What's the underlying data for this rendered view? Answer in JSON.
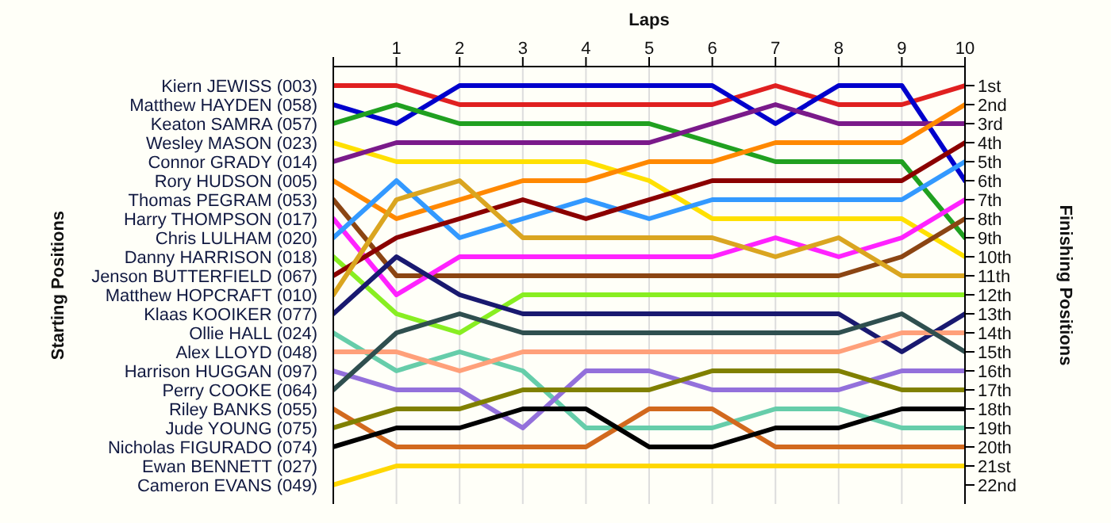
{
  "chart_data": {
    "type": "line",
    "xlabel": "Laps",
    "y2label": "Finishing Positions",
    "x": [
      0,
      1,
      2,
      3,
      4,
      5,
      6,
      7,
      8,
      9,
      10
    ],
    "xlim": [
      0,
      10
    ],
    "xticks": [
      {
        "value": 0,
        "label": null
      },
      1,
      2,
      3,
      4,
      5,
      6,
      7,
      8,
      9,
      10
    ],
    "y2lim": [
      23,
      0
    ],
    "y2ticks": [
      {
        "value": 1,
        "label": "1st"
      },
      {
        "value": 2,
        "label": "2nd"
      },
      {
        "value": 3,
        "label": "3rd"
      },
      {
        "value": 4,
        "label": "4th"
      },
      {
        "value": 5,
        "label": "5th"
      },
      {
        "value": 6,
        "label": "6th"
      },
      {
        "value": 7,
        "label": "7th"
      },
      {
        "value": 8,
        "label": "8th"
      },
      {
        "value": 9,
        "label": "9th"
      },
      {
        "value": 10,
        "label": "10th"
      },
      {
        "value": 11,
        "label": "11th"
      },
      {
        "value": 12,
        "label": "12th"
      },
      {
        "value": 13,
        "label": "13th"
      },
      {
        "value": 14,
        "label": "14th"
      },
      {
        "value": 15,
        "label": "15th"
      },
      {
        "value": 16,
        "label": "16th"
      },
      {
        "value": 17,
        "label": "17th"
      },
      {
        "value": 18,
        "label": "18th"
      },
      {
        "value": 19,
        "label": "19th"
      },
      {
        "value": 20,
        "label": "20th"
      },
      {
        "value": 21,
        "label": "21st"
      },
      {
        "value": 22,
        "label": "22nd"
      }
    ],
    "grid": true,
    "marker": "none",
    "line_style": "solid",
    "annotations": [
      "Ewan BENNETT (027)",
      "Starting Positions"
    ],
    "series": [
      {
        "name": "Kiern JEWISS (003)",
        "axis": "y2",
        "color": "#e02020",
        "values": [
          1,
          1,
          2,
          2,
          2,
          2,
          2,
          1,
          2,
          2,
          1
        ]
      },
      {
        "name": "Matthew HAYDEN (058)",
        "axis": "y2",
        "color": "#0000cc",
        "values": [
          2,
          3,
          1,
          1,
          1,
          1,
          1,
          3,
          1,
          1,
          6
        ]
      },
      {
        "name": "Keaton SAMRA (057)",
        "axis": "y2",
        "color": "#20a020",
        "values": [
          3,
          2,
          3,
          3,
          3,
          3,
          4,
          5,
          5,
          5,
          9
        ]
      },
      {
        "name": "Wesley MASON (023)",
        "axis": "y2",
        "color": "#ffe000",
        "values": [
          4,
          5,
          5,
          5,
          5,
          6,
          8,
          8,
          8,
          8,
          10
        ]
      },
      {
        "name": "Connor GRADY (014)",
        "axis": "y2",
        "color": "#7a1a8a",
        "values": [
          5,
          4,
          4,
          4,
          4,
          4,
          3,
          2,
          3,
          3,
          3
        ]
      },
      {
        "name": "Rory HUDSON (005)",
        "axis": "y2",
        "color": "#ff8800",
        "values": [
          6,
          8,
          7,
          6,
          6,
          5,
          5,
          4,
          4,
          4,
          2
        ]
      },
      {
        "name": "Thomas PEGRAM (053)",
        "axis": "y2",
        "color": "#8b4513",
        "values": [
          7,
          11,
          11,
          11,
          11,
          11,
          11,
          11,
          11,
          10,
          8
        ]
      },
      {
        "name": "Harry THOMPSON (017)",
        "axis": "y2",
        "color": "#ff22ff",
        "values": [
          8,
          12,
          10,
          10,
          10,
          10,
          10,
          9,
          10,
          9,
          7
        ]
      },
      {
        "name": "Chris LULHAM (020)",
        "axis": "y2",
        "color": "#3399ff",
        "values": [
          9,
          6,
          9,
          8,
          7,
          8,
          7,
          7,
          7,
          7,
          5
        ]
      },
      {
        "name": "Danny HARRISON (018)",
        "axis": "y2",
        "color": "#88ee22",
        "values": [
          10,
          13,
          14,
          12,
          12,
          12,
          12,
          12,
          12,
          12,
          12
        ]
      },
      {
        "name": "Jenson BUTTERFIELD (067)",
        "axis": "y2",
        "color": "#8b0000",
        "values": [
          11,
          9,
          8,
          7,
          8,
          7,
          6,
          6,
          6,
          6,
          4
        ]
      },
      {
        "name": "Matthew HOPCRAFT (010)",
        "axis": "y2",
        "color": "#daa520",
        "values": [
          12,
          7,
          6,
          9,
          9,
          9,
          9,
          10,
          9,
          11,
          11
        ]
      },
      {
        "name": "Klaas KOOIKER (077)",
        "axis": "y2",
        "color": "#191970",
        "values": [
          13,
          10,
          12,
          13,
          13,
          13,
          13,
          13,
          13,
          15,
          13
        ]
      },
      {
        "name": "Ollie HALL (024)",
        "axis": "y2",
        "color": "#66cdaa",
        "values": [
          14,
          16,
          15,
          16,
          19,
          19,
          19,
          18,
          18,
          19,
          19
        ]
      },
      {
        "name": "Alex LLOYD (048)",
        "axis": "y2",
        "color": "#ffa07a",
        "values": [
          15,
          15,
          16,
          15,
          15,
          15,
          15,
          15,
          15,
          14,
          14
        ]
      },
      {
        "name": "Harrison HUGGAN (097)",
        "axis": "y2",
        "color": "#9370db",
        "values": [
          16,
          17,
          17,
          19,
          16,
          16,
          17,
          17,
          17,
          16,
          16
        ]
      },
      {
        "name": "Perry COOKE (064)",
        "axis": "y2",
        "color": "#2f4f4f",
        "values": [
          17,
          14,
          13,
          14,
          14,
          14,
          14,
          14,
          14,
          13,
          15
        ]
      },
      {
        "name": "Riley BANKS (055)",
        "axis": "y2",
        "color": "#d2691e",
        "values": [
          18,
          20,
          20,
          20,
          20,
          18,
          18,
          20,
          20,
          20,
          20
        ]
      },
      {
        "name": "Jude YOUNG (075)",
        "axis": "y2",
        "color": "#808000",
        "values": [
          19,
          18,
          18,
          17,
          17,
          17,
          16,
          16,
          16,
          17,
          17
        ]
      },
      {
        "name": "Nicholas FIGURADO (074)",
        "axis": "y2",
        "color": "#000000",
        "values": [
          20,
          19,
          19,
          18,
          18,
          20,
          20,
          19,
          19,
          18,
          18
        ]
      },
      {
        "name": "Cameron EVANS (049)",
        "axis": "y2",
        "color": "#ffd700",
        "values": [
          22,
          21,
          21,
          21,
          21,
          21,
          21,
          21,
          21,
          21,
          21
        ]
      }
    ]
  }
}
